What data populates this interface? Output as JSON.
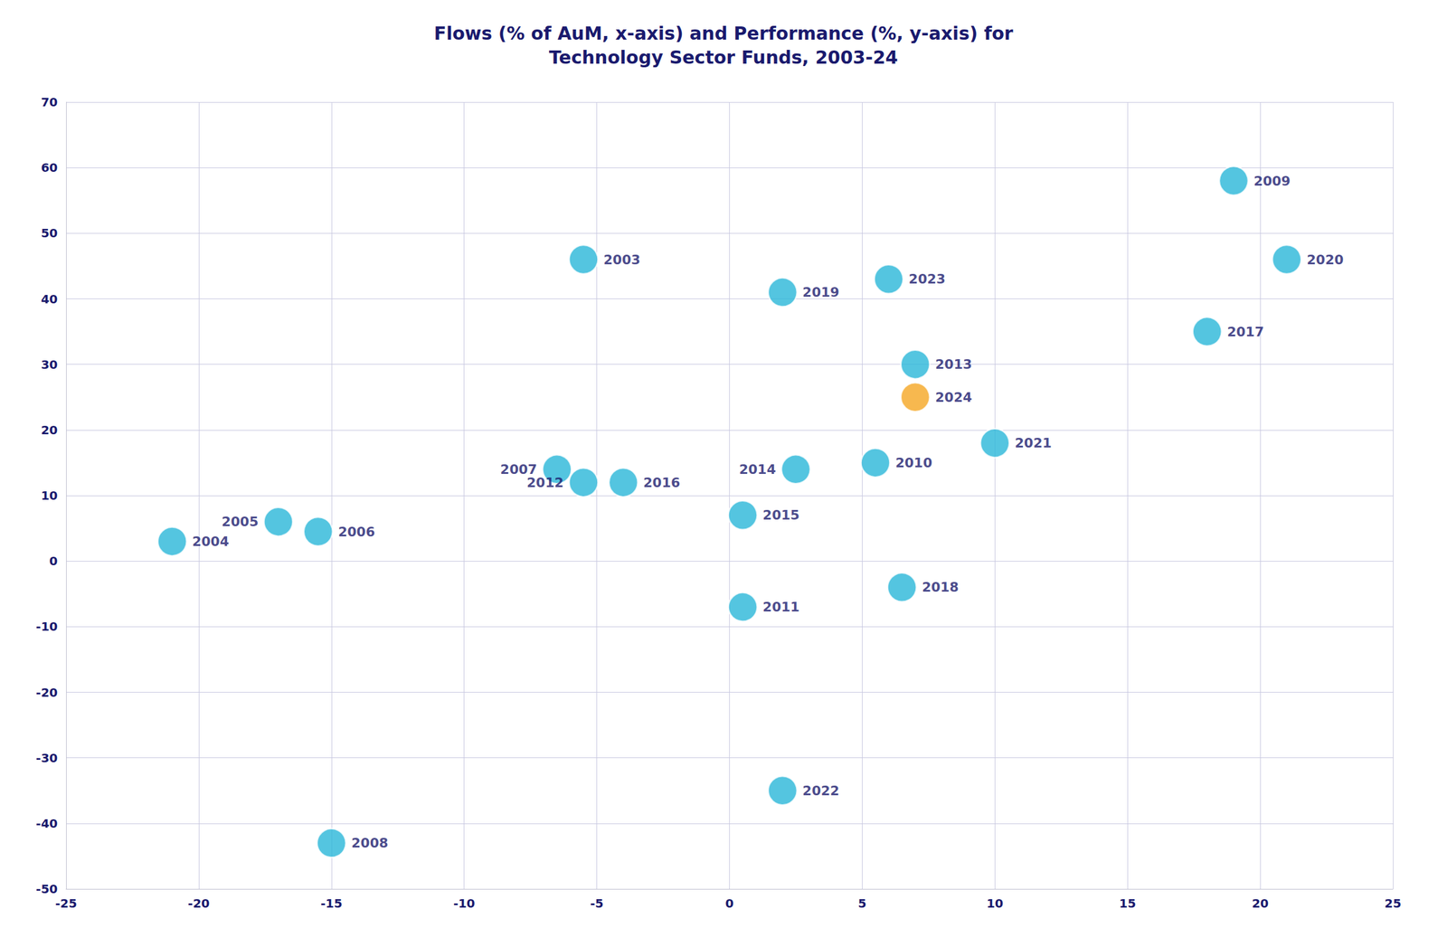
{
  "chart_data": {
    "type": "scatter",
    "title": "Flows (% of AuM, x-axis) and Performance (%, y-axis) for\nTechnology Sector Funds, 2003-24",
    "labels": [
      "2003",
      "2004",
      "2005",
      "2006",
      "2007",
      "2008",
      "2009",
      "2010",
      "2011",
      "2012",
      "2013",
      "2014",
      "2015",
      "2016",
      "2017",
      "2018",
      "2019",
      "2020",
      "2021",
      "2022",
      "2023",
      "2024"
    ],
    "x": [
      -5.5,
      -21,
      -17,
      -15.5,
      -6.5,
      -15,
      19,
      5.5,
      0.5,
      -5.5,
      7,
      2.5,
      0.5,
      -4.0,
      18,
      6.5,
      2,
      21,
      10,
      2,
      6,
      7
    ],
    "values": [
      46,
      3,
      6,
      4.5,
      14,
      -43,
      58,
      15,
      -7,
      12,
      30,
      14,
      7,
      12,
      35,
      -4,
      41,
      46,
      18,
      -35,
      43,
      25
    ],
    "colors": [
      "#29b6d8",
      "#29b6d8",
      "#29b6d8",
      "#29b6d8",
      "#29b6d8",
      "#29b6d8",
      "#29b6d8",
      "#29b6d8",
      "#29b6d8",
      "#29b6d8",
      "#29b6d8",
      "#29b6d8",
      "#29b6d8",
      "#29b6d8",
      "#29b6d8",
      "#29b6d8",
      "#29b6d8",
      "#29b6d8",
      "#29b6d8",
      "#29b6d8",
      "#29b6d8",
      "#f5a623"
    ],
    "xlim": [
      -25,
      25
    ],
    "ylim": [
      -50,
      70
    ],
    "xticks": [
      -25,
      -20,
      -15,
      -10,
      -5,
      0,
      5,
      10,
      15,
      20,
      25
    ],
    "yticks": [
      -50,
      -40,
      -30,
      -20,
      -10,
      0,
      10,
      20,
      30,
      40,
      50,
      60,
      70
    ],
    "grid": true
  }
}
